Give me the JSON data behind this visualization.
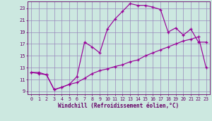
{
  "title": "",
  "xlabel": "Windchill (Refroidissement éolien,°C)",
  "background_color": "#cce8e0",
  "grid_color": "#9988bb",
  "line_color": "#990099",
  "marker": "+",
  "xlim": [
    -0.5,
    23.5
  ],
  "ylim": [
    8.5,
    24.2
  ],
  "xticks": [
    0,
    1,
    2,
    3,
    4,
    5,
    6,
    7,
    8,
    9,
    10,
    11,
    12,
    13,
    14,
    15,
    16,
    17,
    18,
    19,
    20,
    21,
    22,
    23
  ],
  "yticks": [
    9,
    11,
    13,
    15,
    17,
    19,
    21,
    23
  ],
  "upper_x": [
    0,
    1,
    2,
    3,
    4,
    5,
    6,
    7,
    8,
    9,
    10,
    11,
    12,
    13,
    14,
    15,
    16,
    17,
    18,
    19,
    20,
    21,
    22,
    23
  ],
  "upper_y": [
    12.2,
    12.2,
    11.8,
    9.3,
    9.7,
    10.2,
    11.5,
    17.3,
    16.5,
    15.5,
    19.5,
    21.2,
    22.5,
    23.8,
    23.5,
    23.5,
    23.2,
    22.8,
    19.0,
    19.7,
    18.5,
    19.5,
    17.3,
    17.3
  ],
  "lower_x": [
    0,
    1,
    2,
    3,
    4,
    5,
    6,
    7,
    8,
    9,
    10,
    11,
    12,
    13,
    14,
    15,
    16,
    17,
    18,
    19,
    20,
    21,
    22,
    23
  ],
  "lower_y": [
    12.2,
    12.0,
    11.8,
    9.3,
    9.7,
    10.2,
    10.5,
    11.2,
    12.0,
    12.5,
    12.8,
    13.2,
    13.5,
    14.0,
    14.3,
    15.0,
    15.5,
    16.0,
    16.5,
    17.0,
    17.5,
    17.8,
    18.2,
    13.0
  ]
}
